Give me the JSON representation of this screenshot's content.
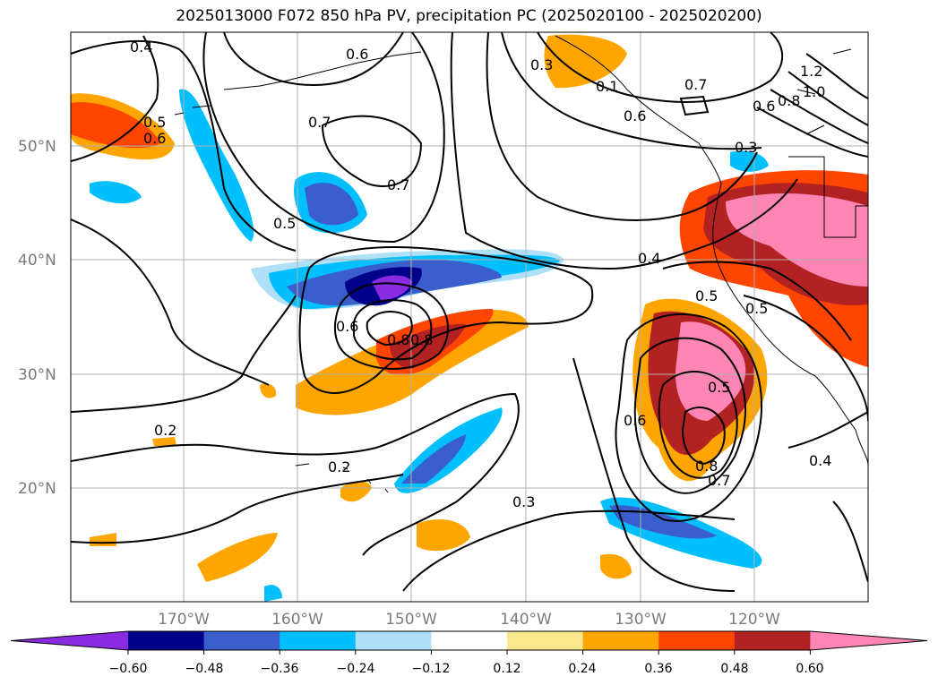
{
  "title": "2025013000 F072 850 hPa PV, precipitation PC (2025020100 - 2025020200)",
  "map": {
    "lat_labels": [
      "50°N",
      "40°N",
      "30°N",
      "20°N"
    ],
    "lon_labels": [
      "170°W",
      "160°W",
      "150°W",
      "140°W",
      "130°W",
      "120°W"
    ],
    "contour_labels": [
      "0.4",
      "0.6",
      "0.7",
      "0.7",
      "0.5",
      "0.5",
      "0.6",
      "0.6",
      "0.8",
      "0.8",
      "0.6",
      "0.5",
      "0.7",
      "0.4",
      "0.5",
      "0.3",
      "0.2",
      "0.2",
      "0.3",
      "0.6",
      "0.5",
      "0.8",
      "0.7",
      "0.4",
      "1.2",
      "1.0",
      "0.8",
      "0.6",
      "0.3",
      "0.1"
    ],
    "grid": true
  },
  "colorbar": {
    "colors": [
      "#8a2be2",
      "#00008b",
      "#3a5fcd",
      "#00bfff",
      "#b0e0f8",
      "#ffffff",
      "#fbe88c",
      "#ffa500",
      "#ff4500",
      "#b22222",
      "#ff86b4"
    ],
    "tick_labels": [
      "−0.60",
      "−0.48",
      "−0.36",
      "−0.24",
      "−0.12",
      "0.12",
      "0.24",
      "0.36",
      "0.48",
      "0.60"
    ],
    "extend": "both"
  }
}
